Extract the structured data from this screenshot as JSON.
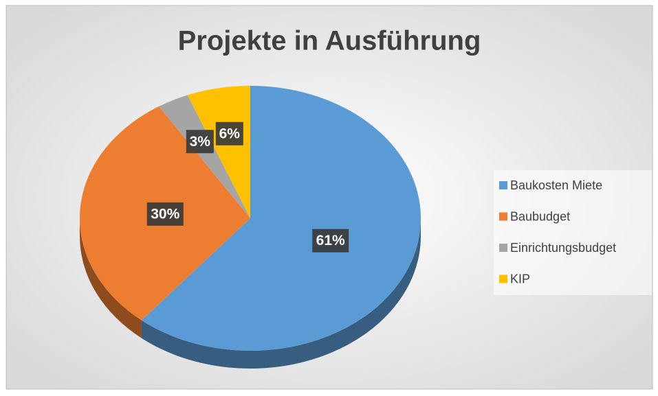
{
  "chart_data": {
    "type": "pie3d",
    "title": "Projekte in Ausführung",
    "categories": [
      "Baukosten Miete",
      "Baubudget",
      "Einrichtungsbudget",
      "KIP"
    ],
    "values": [
      61,
      30,
      3,
      6
    ],
    "value_labels": [
      "61%",
      "30%",
      "3%",
      "6%"
    ],
    "colors": [
      "#5b9bd5",
      "#ed7d31",
      "#a5a5a5",
      "#ffc000"
    ],
    "legend": "right"
  }
}
